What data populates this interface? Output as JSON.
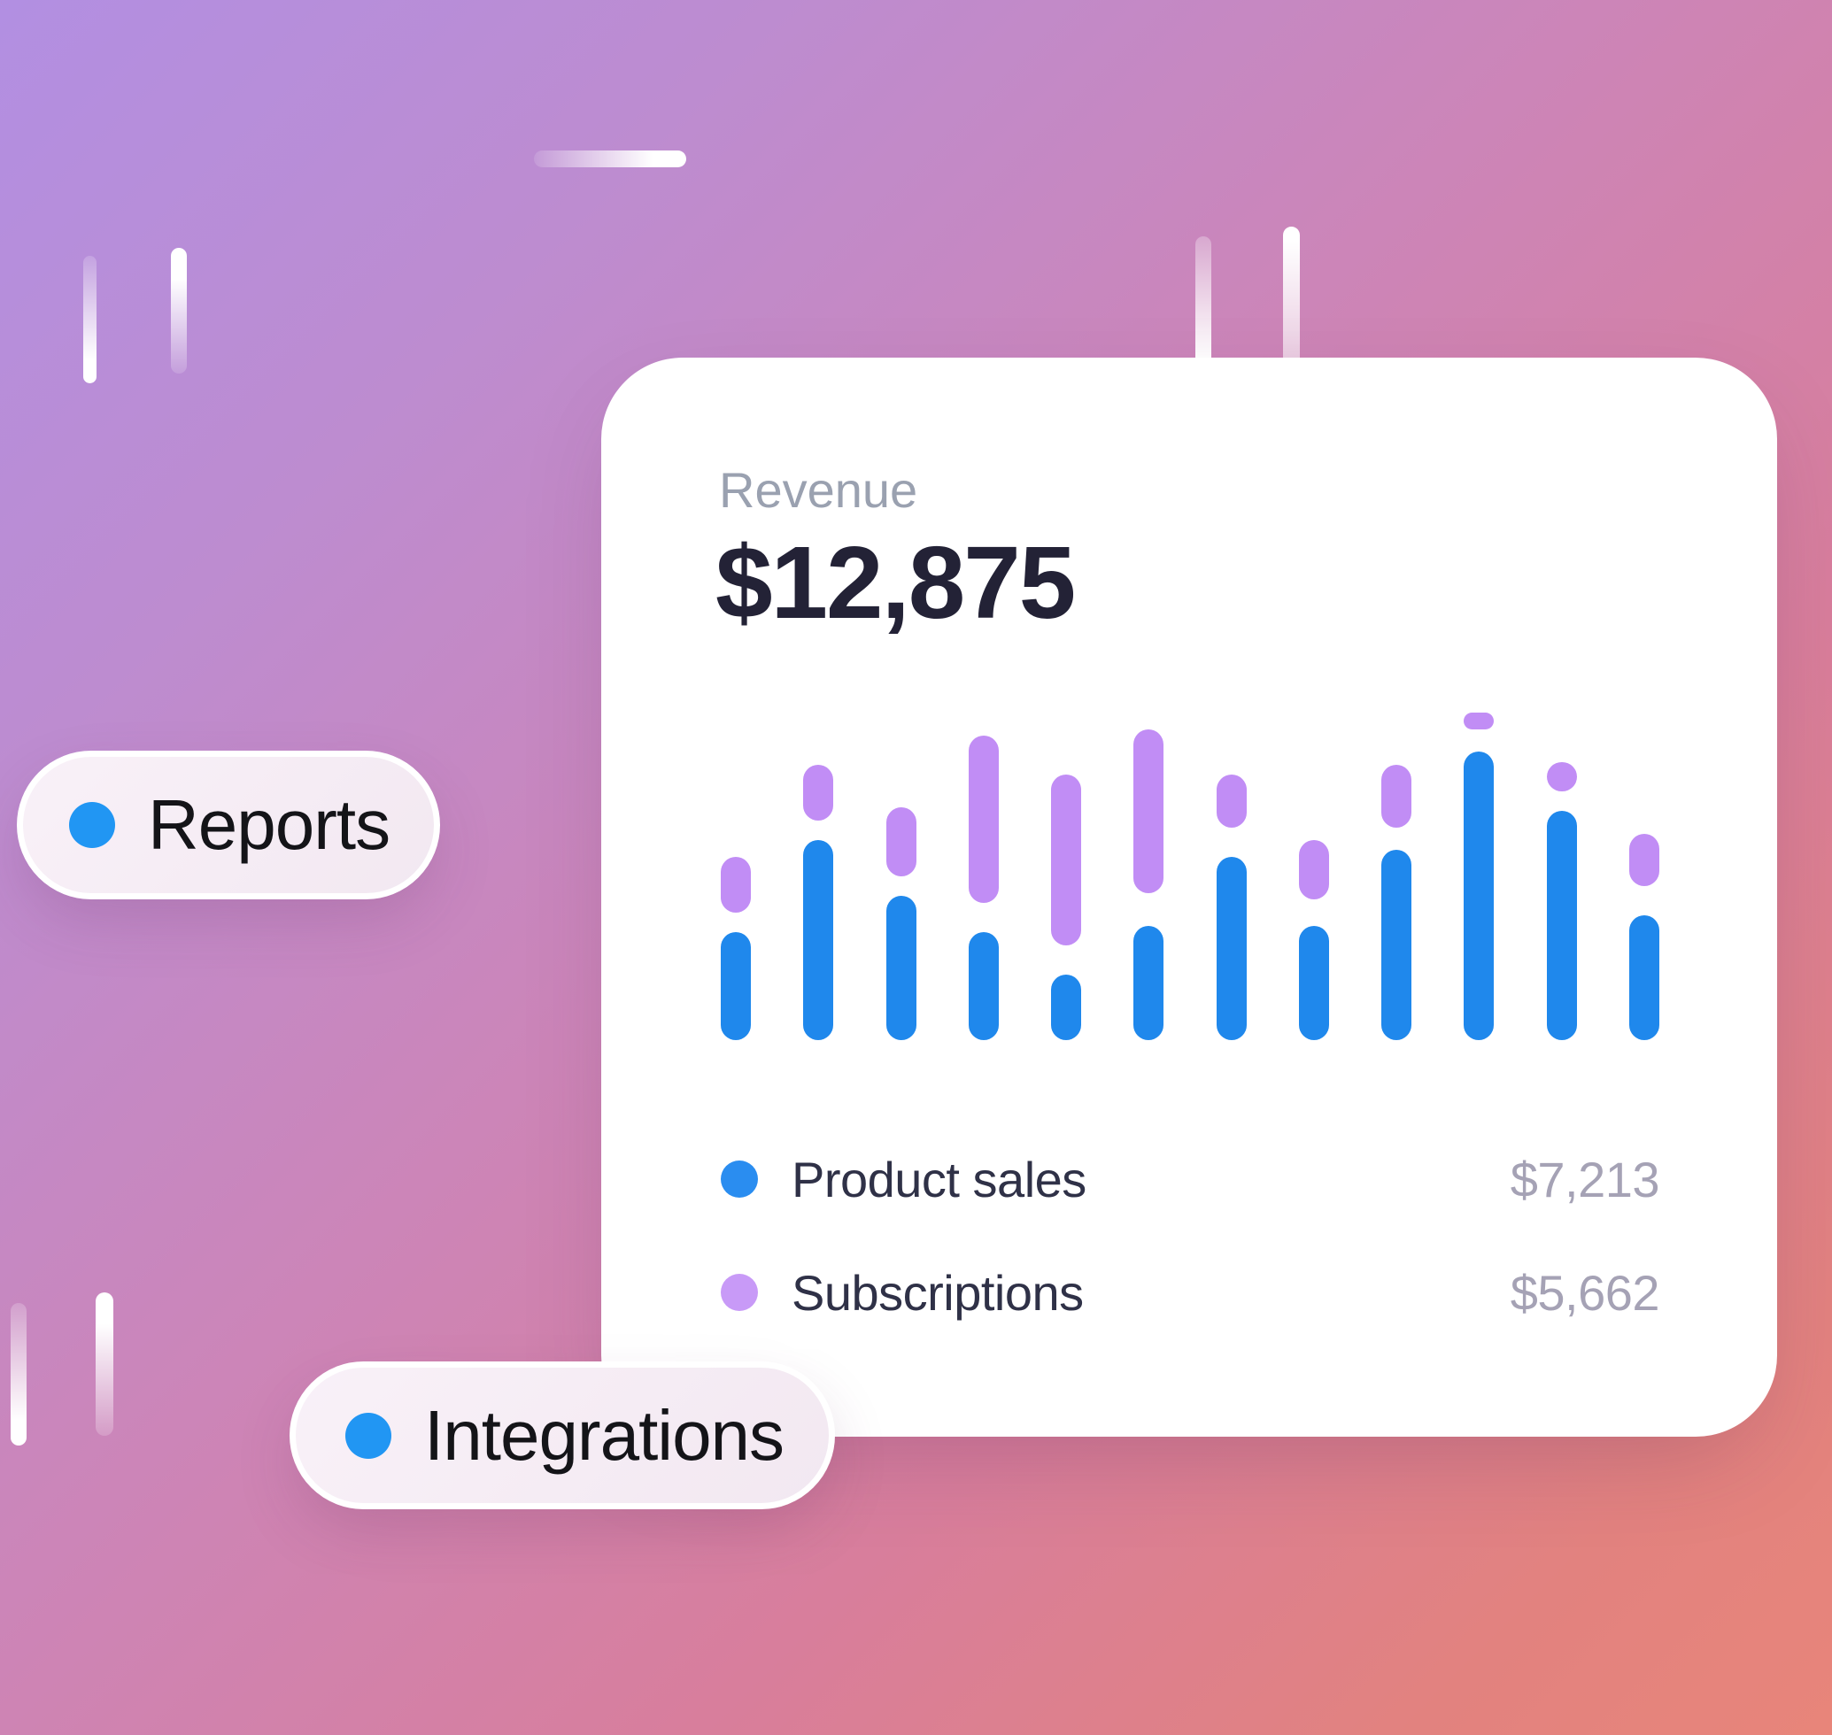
{
  "background": {
    "gradient": [
      "#b28fe2",
      "#cc85b8",
      "#d87e9c",
      "#e8857a"
    ],
    "decor_dash_color": "#ffffff"
  },
  "badges": {
    "reports": {
      "label": "Reports",
      "dot_color": "#2196f3"
    },
    "integrations": {
      "label": "Integrations",
      "dot_color": "#2196f3"
    }
  },
  "card": {
    "title": "Revenue",
    "amount": "$12,875",
    "legend": [
      {
        "label": "Product sales",
        "value": "$7,213",
        "color": "#2a8df0"
      },
      {
        "label": "Subscriptions",
        "value": "$5,662",
        "color": "#c89af7"
      }
    ]
  },
  "chart_data": {
    "type": "bar",
    "title": "Revenue",
    "total_value": "$12,875",
    "unit": "percent_of_chart_height",
    "legend_position": "bottom",
    "grid": false,
    "axes_labels": false,
    "series": [
      {
        "name": "Product sales",
        "color": "#1f88ec",
        "total": "$7,213"
      },
      {
        "name": "Subscriptions",
        "color": "#c18df5",
        "total": "$5,662"
      }
    ],
    "bars": [
      {
        "blue": 33,
        "purple_start": 39,
        "purple_end": 56
      },
      {
        "blue": 61,
        "purple_start": 67,
        "purple_end": 84
      },
      {
        "blue": 44,
        "purple_start": 50,
        "purple_end": 71
      },
      {
        "blue": 33,
        "purple_start": 42,
        "purple_end": 93
      },
      {
        "blue": 20,
        "purple_start": 29,
        "purple_end": 81
      },
      {
        "blue": 35,
        "purple_start": 45,
        "purple_end": 95
      },
      {
        "blue": 56,
        "purple_start": 65,
        "purple_end": 81
      },
      {
        "blue": 35,
        "purple_start": 43,
        "purple_end": 61
      },
      {
        "blue": 58,
        "purple_start": 65,
        "purple_end": 84
      },
      {
        "blue": 88,
        "purple_start": 95,
        "purple_end": 100
      },
      {
        "blue": 70,
        "purple_start": 76,
        "purple_end": 85
      },
      {
        "blue": 38,
        "purple_start": 47,
        "purple_end": 63
      }
    ]
  }
}
